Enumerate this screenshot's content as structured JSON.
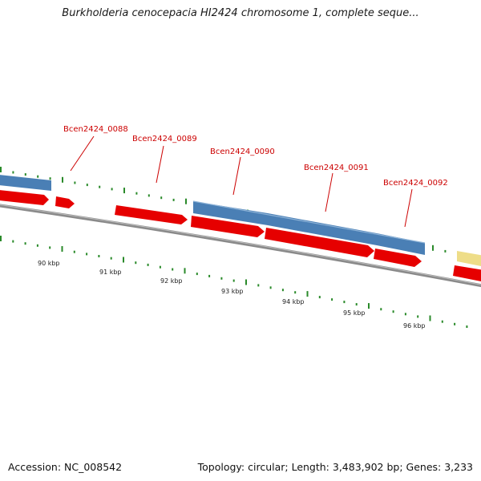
{
  "title": "Burkholderia cenocepacia HI2424 chromosome 1, complete seque...",
  "footer": {
    "accession": "Accession: NC_008542",
    "summary": "Topology: circular; Length: 3,483,902 bp; Genes: 3,233"
  },
  "colors": {
    "cds": "#e60000",
    "gene": "#4a7fb5",
    "other_feature": "#eedd88",
    "backbone": "#7a7a7a",
    "gc_ticks": "#2a8a2a",
    "label": "#cc0000"
  },
  "ruler": {
    "ticks": [
      "90 kbp",
      "91 kbp",
      "92 kbp",
      "93 kbp",
      "94 kbp",
      "95 kbp",
      "96 kbp"
    ]
  },
  "gene_labels": [
    "Bcen2424_0088",
    "Bcen2424_0089",
    "Bcen2424_0090",
    "Bcen2424_0091",
    "Bcen2424_0092"
  ]
}
